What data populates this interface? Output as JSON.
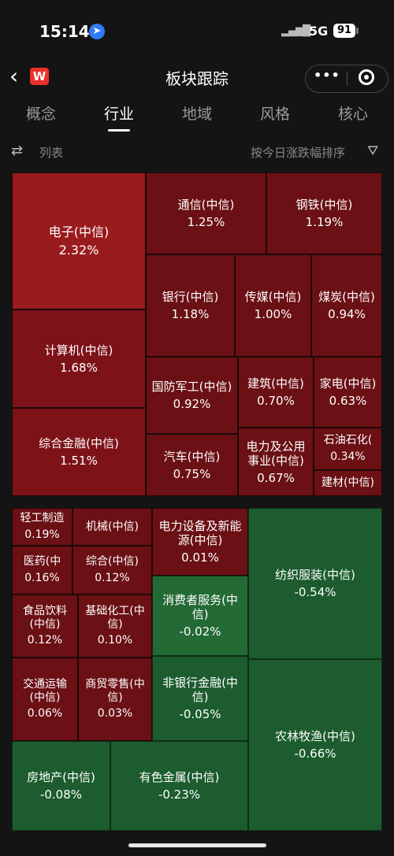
{
  "status_bar": {
    "time": "15:14",
    "network": "5G",
    "battery": "91",
    "location_icon": "location-arrow-icon"
  },
  "nav": {
    "title": "板块跟踪",
    "logo_letter": "W",
    "menu_dots": "•••"
  },
  "tabs": [
    {
      "label": "概念"
    },
    {
      "label": "行业"
    },
    {
      "label": "地域"
    },
    {
      "label": "风格"
    },
    {
      "label": "核心"
    }
  ],
  "active_tab": "行业",
  "filter_bar": {
    "list_label": "列表",
    "sort_label": "按今日涨跌幅排序"
  },
  "colors": {
    "up": "#9a1b1d",
    "down": "#1c5c2e"
  },
  "sectors": [
    {
      "name": "电子(中信)",
      "pct": "2.32%"
    },
    {
      "name": "通信(中信)",
      "pct": "1.25%"
    },
    {
      "name": "钢铁(中信)",
      "pct": "1.19%"
    },
    {
      "name": "银行(中信)",
      "pct": "1.18%"
    },
    {
      "name": "传媒(中信)",
      "pct": "1.00%"
    },
    {
      "name": "煤炭(中信)",
      "pct": "0.94%"
    },
    {
      "name": "计算机(中信)",
      "pct": "1.68%"
    },
    {
      "name": "国防军工(中信)",
      "pct": "0.92%"
    },
    {
      "name": "建筑(中信)",
      "pct": "0.70%"
    },
    {
      "name": "家电(中信)",
      "pct": "0.63%"
    },
    {
      "name": "综合金融(中信)",
      "pct": "1.51%"
    },
    {
      "name": "汽车(中信)",
      "pct": "0.75%"
    },
    {
      "name": "电力及公用事业(中信)",
      "pct": "0.67%"
    },
    {
      "name": "石油石化(",
      "pct": "0.34%"
    },
    {
      "name": "建材(中信)",
      "pct": ""
    },
    {
      "name": "轻工制造",
      "pct": "0.19%"
    },
    {
      "name": "机械(中信)",
      "pct": ""
    },
    {
      "name": "电力设备及新能源(中信)",
      "pct": "0.01%"
    },
    {
      "name": "医药(中",
      "pct": "0.16%"
    },
    {
      "name": "综合(中信)",
      "pct": "0.12%"
    },
    {
      "name": "食品饮料(中信)",
      "pct": "0.12%"
    },
    {
      "name": "基础化工(中信)",
      "pct": "0.10%"
    },
    {
      "name": "消费者服务(中信)",
      "pct": "-0.02%"
    },
    {
      "name": "纺织服装(中信)",
      "pct": "-0.54%"
    },
    {
      "name": "交通运输(中信)",
      "pct": "0.06%"
    },
    {
      "name": "商贸零售(中信)",
      "pct": "0.03%"
    },
    {
      "name": "非银行金融(中信)",
      "pct": "-0.05%"
    },
    {
      "name": "农林牧渔(中信)",
      "pct": "-0.66%"
    },
    {
      "name": "房地产(中信)",
      "pct": "-0.08%"
    },
    {
      "name": "有色金属(中信)",
      "pct": "-0.23%"
    }
  ]
}
